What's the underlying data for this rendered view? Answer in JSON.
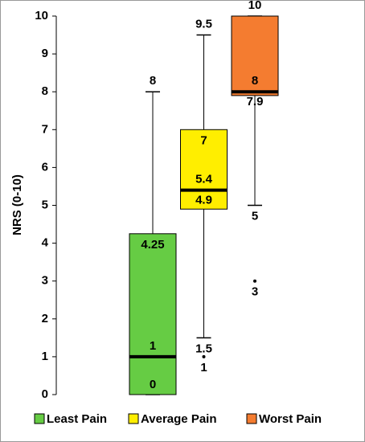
{
  "chart_data": {
    "type": "box",
    "y_label": "NRS (0-10)",
    "ylim": [
      0,
      10
    ],
    "yticks": [
      0,
      1,
      2,
      3,
      4,
      5,
      6,
      7,
      8,
      9,
      10
    ],
    "legend": "bottom",
    "series": [
      {
        "name": "Least Pain",
        "color": "#66cc44",
        "min": 0,
        "q1": 0,
        "median": 1,
        "q3": 4.25,
        "max": 8,
        "outliers": []
      },
      {
        "name": "Average Pain",
        "color": "#ffee00",
        "min": 1.5,
        "q1": 4.9,
        "median": 5.4,
        "q3": 7,
        "max": 9.5,
        "outliers": [
          1
        ]
      },
      {
        "name": "Worst Pain",
        "color": "#f47c30",
        "min": 5,
        "q1": 7.9,
        "median": 8,
        "q3": 10,
        "max": 10,
        "outliers": [
          3
        ]
      }
    ]
  }
}
